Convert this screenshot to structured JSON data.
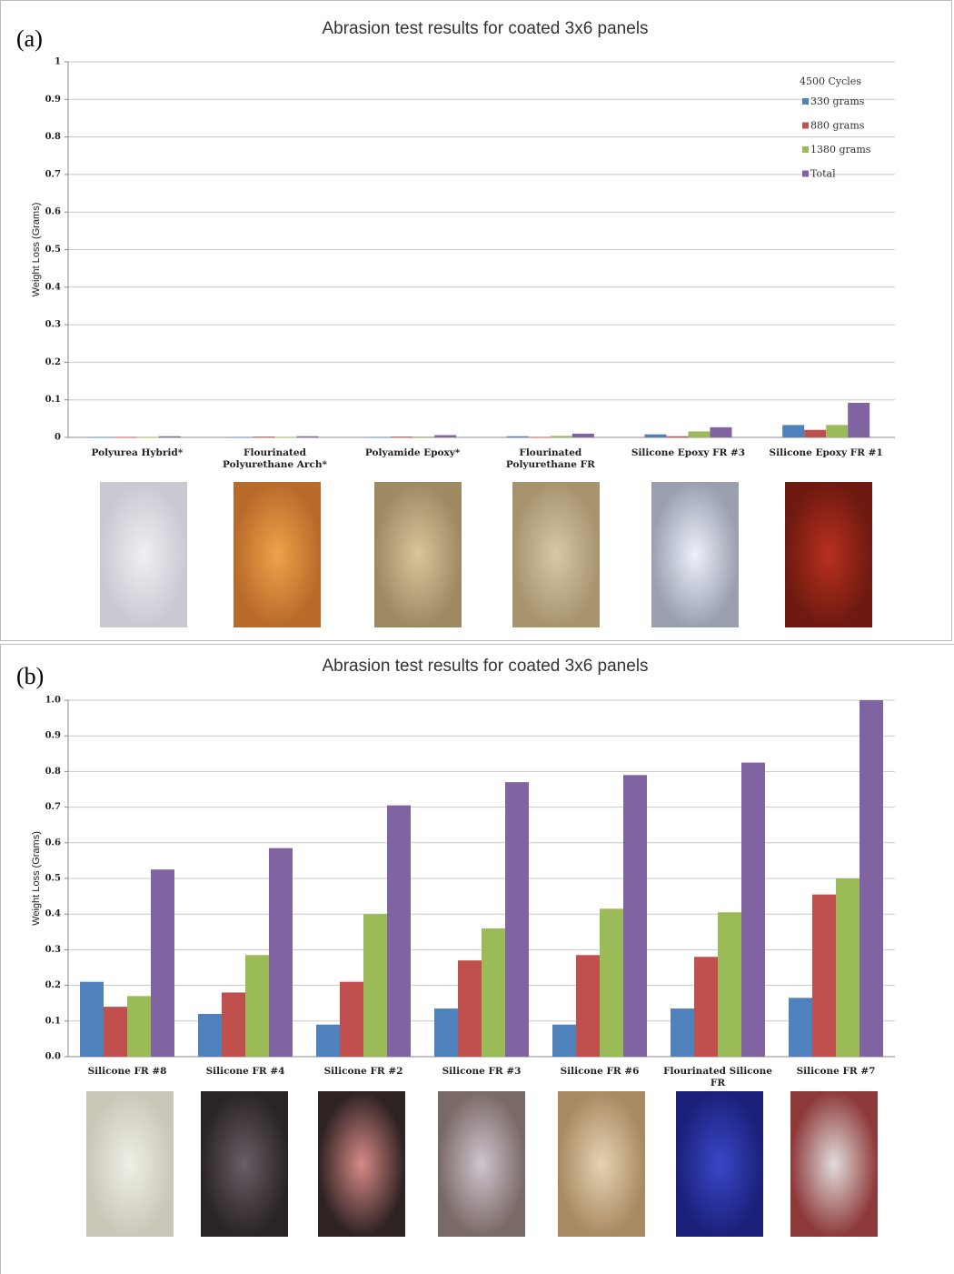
{
  "chart_data": [
    {
      "type": "bar",
      "panel_label": "(a)",
      "title": "Abrasion test results for coated 3x6 panels",
      "y_label": "Weight Loss (Grams)",
      "legend_title": "4500 Cycles",
      "legend": true,
      "legend_position": "upper right",
      "grid": true,
      "categories": [
        "Polyurea Hybrid*",
        "Flourinated Polyurethane Arch*",
        "Polyamide Epoxy*",
        "Flourinated Polyurethane FR",
        "Silicone Epoxy FR #3",
        "Silicone Epoxy FR #1"
      ],
      "series": [
        {
          "name": "330 grams",
          "color": "#4f81bd",
          "values": [
            0.001,
            0.001,
            0.001,
            0.003,
            0.008,
            0.033
          ]
        },
        {
          "name": "880 grams",
          "color": "#c0504d",
          "values": [
            0.001,
            0.002,
            0.002,
            0.001,
            0.003,
            0.02
          ]
        },
        {
          "name": "1380 grams",
          "color": "#9bbb59",
          "values": [
            0.001,
            0.001,
            0.002,
            0.004,
            0.016,
            0.033
          ]
        },
        {
          "name": "Total",
          "color": "#8064a2",
          "values": [
            0.003,
            0.003,
            0.006,
            0.01,
            0.027,
            0.092
          ]
        }
      ],
      "ylim": [
        0,
        1
      ],
      "yticks": [
        0,
        0.1,
        0.2,
        0.3,
        0.4,
        0.5,
        0.6,
        0.7,
        0.8,
        0.9,
        1
      ]
    },
    {
      "type": "bar",
      "panel_label": "(b)",
      "title": "Abrasion test results for coated 3x6 panels",
      "y_label": "Weight Loss (Grams)",
      "legend": false,
      "grid": true,
      "categories": [
        "Silicone FR #8",
        "Silicone FR #4",
        "Silicone FR #2",
        "Silicone FR #3",
        "Silicone FR #6",
        "Flourinated Silicone FR",
        "Silicone FR #7"
      ],
      "series": [
        {
          "color": "#4f81bd",
          "values": [
            0.21,
            0.12,
            0.09,
            0.135,
            0.09,
            0.135,
            0.165
          ]
        },
        {
          "color": "#c0504d",
          "values": [
            0.14,
            0.18,
            0.21,
            0.27,
            0.285,
            0.28,
            0.455
          ]
        },
        {
          "color": "#9bbb59",
          "values": [
            0.17,
            0.285,
            0.4,
            0.36,
            0.415,
            0.405,
            0.5
          ]
        },
        {
          "color": "#8064a2",
          "values": [
            0.525,
            0.585,
            0.705,
            0.77,
            0.79,
            0.825,
            1.0
          ]
        }
      ],
      "ylim": [
        0,
        1
      ],
      "yticks": [
        {
          "value": 0,
          "label": "0.0"
        },
        {
          "value": 0.1,
          "label": "0.1"
        },
        {
          "value": 0.2,
          "label": "0.2"
        },
        {
          "value": 0.3,
          "label": "0.3"
        },
        {
          "value": 0.4,
          "label": "0.4"
        },
        {
          "value": 0.5,
          "label": "0.5"
        },
        {
          "value": 0.6,
          "label": "0.6"
        },
        {
          "value": 0.7,
          "label": "0.7"
        },
        {
          "value": 0.8,
          "label": "0.8"
        },
        {
          "value": 0.9,
          "label": "0.9"
        },
        {
          "value": 1.0,
          "label": "1.0"
        }
      ]
    }
  ]
}
